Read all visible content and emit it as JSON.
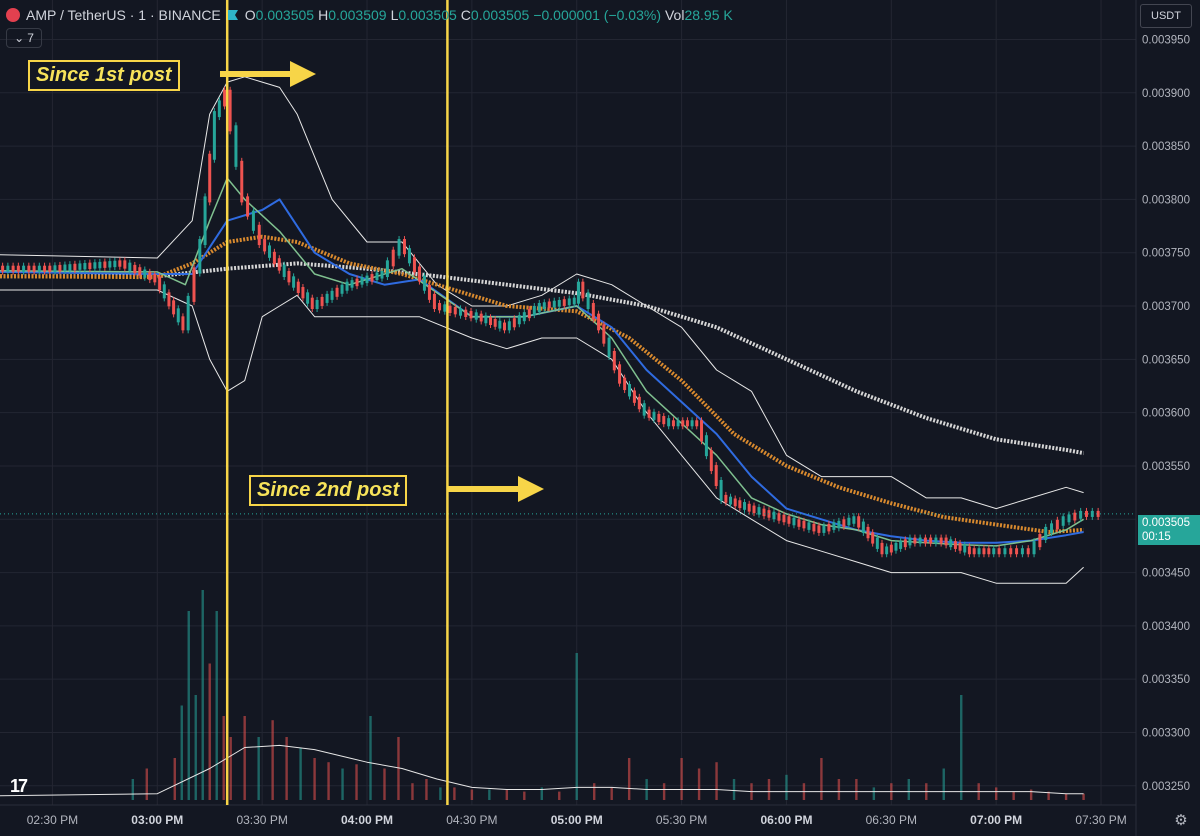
{
  "header": {
    "title": "AMP / TetherUS · 1 · BINANCE",
    "open_label": "O",
    "open": "0.003505",
    "high_label": "H",
    "high": "0.003509",
    "low_label": "L",
    "low": "0.003505",
    "close_label": "C",
    "close": "0.003505",
    "change": "−0.000001 (−0.03%)",
    "vol_label": "Vol",
    "vol": "28.95 K",
    "indicators_count": "7"
  },
  "currency": "USDT",
  "price_tag": {
    "price": "0.003505",
    "countdown": "00:15"
  },
  "annotations": {
    "first": "Since 1st post",
    "second": "Since 2nd post"
  },
  "colors": {
    "up": "#26a69a",
    "down": "#ef5350",
    "highlight": "#f7d548",
    "bollinger": "#e8e8e8",
    "ema_fast": "#7fc08f",
    "ema_mid": "#2f6be0",
    "ma_orange": "#d98a2e",
    "ma_white": "#d6d6d6",
    "background": "#131722"
  },
  "icons": {
    "logo": "tradingview-logo-icon",
    "settings": "gear-icon",
    "symbol": "amp-coin-icon"
  },
  "chart_data": {
    "type": "line",
    "title": "AMP / TetherUS · 1 · BINANCE",
    "x_tick_labels": [
      "02:30 PM",
      "03:00 PM",
      "03:30 PM",
      "04:00 PM",
      "04:30 PM",
      "05:00 PM",
      "05:30 PM",
      "06:00 PM",
      "06:30 PM",
      "07:00 PM",
      "07:30 PM"
    ],
    "x_tick_minutes": [
      870,
      900,
      930,
      960,
      990,
      1020,
      1050,
      1080,
      1110,
      1140,
      1170
    ],
    "x_range_minutes": [
      855,
      1180
    ],
    "y_tick_labels": [
      "0.003250",
      "0.003300",
      "0.003350",
      "0.003400",
      "0.003450",
      "0.003500",
      "0.003550",
      "0.003600",
      "0.003650",
      "0.003700",
      "0.003750",
      "0.003800",
      "0.003850",
      "0.003900",
      "0.003950"
    ],
    "ylim": [
      0.003232,
      0.003987
    ],
    "vertical_markers_minutes": [
      920,
      983
    ],
    "series": [
      {
        "name": "",
        "role": "price_close",
        "x": [
          855,
          870,
          890,
          900,
          908,
          913,
          917,
          920,
          925,
          930,
          937,
          945,
          955,
          965,
          970,
          980,
          992,
          1000,
          1010,
          1020,
          1021,
          1027,
          1033,
          1040,
          1047,
          1055,
          1062,
          1070,
          1080,
          1090,
          1100,
          1108,
          1116,
          1125,
          1133,
          1140,
          1145,
          1150,
          1155,
          1160,
          1165,
          1170
        ],
        "y": [
          0.003735,
          0.003735,
          0.00374,
          0.003725,
          0.00368,
          0.00376,
          0.00388,
          0.0039,
          0.0038,
          0.00376,
          0.00373,
          0.0037,
          0.00372,
          0.00373,
          0.00376,
          0.0037,
          0.00369,
          0.00368,
          0.0037,
          0.003705,
          0.00372,
          0.00368,
          0.00363,
          0.0036,
          0.00359,
          0.00359,
          0.00352,
          0.00351,
          0.0035,
          0.00349,
          0.0035,
          0.00347,
          0.00348,
          0.00348,
          0.00347,
          0.00347,
          0.00347,
          0.00347,
          0.00349,
          0.0035,
          0.003505,
          0.003505
        ]
      },
      {
        "name": "",
        "role": "ema_fast",
        "x": [
          855,
          900,
          908,
          915,
          920,
          925,
          935,
          945,
          955,
          970,
          990,
          1005,
          1020,
          1030,
          1040,
          1050,
          1060,
          1070,
          1080,
          1090,
          1100,
          1110,
          1120,
          1130,
          1140,
          1150,
          1160,
          1165
        ],
        "y": [
          0.003733,
          0.003732,
          0.00372,
          0.00378,
          0.00382,
          0.0038,
          0.00377,
          0.00373,
          0.00372,
          0.003735,
          0.00369,
          0.00369,
          0.0037,
          0.00367,
          0.00362,
          0.00359,
          0.00356,
          0.00352,
          0.003505,
          0.003495,
          0.00349,
          0.00348,
          0.003478,
          0.003476,
          0.003475,
          0.00348,
          0.00349,
          0.0035
        ]
      },
      {
        "name": "",
        "role": "ema_mid",
        "x": [
          855,
          900,
          910,
          920,
          930,
          935,
          945,
          955,
          965,
          975,
          990,
          1005,
          1020,
          1030,
          1040,
          1050,
          1060,
          1070,
          1080,
          1090,
          1100,
          1110,
          1120,
          1130,
          1140,
          1150,
          1160,
          1165
        ],
        "y": [
          0.003732,
          0.00373,
          0.00373,
          0.00378,
          0.00379,
          0.0038,
          0.00375,
          0.00373,
          0.00372,
          0.003725,
          0.00369,
          0.00369,
          0.0037,
          0.00368,
          0.00364,
          0.00361,
          0.00358,
          0.00354,
          0.00351,
          0.0035,
          0.00349,
          0.003484,
          0.00348,
          0.003478,
          0.003478,
          0.00348,
          0.003485,
          0.003488
        ]
      },
      {
        "name": "",
        "role": "ma_orange",
        "x": [
          855,
          900,
          910,
          920,
          930,
          940,
          955,
          970,
          985,
          1000,
          1020,
          1035,
          1050,
          1065,
          1080,
          1095,
          1110,
          1125,
          1140,
          1155,
          1165
        ],
        "y": [
          0.003728,
          0.003727,
          0.00374,
          0.00376,
          0.003765,
          0.00376,
          0.00374,
          0.00373,
          0.003715,
          0.0037,
          0.003695,
          0.00367,
          0.00363,
          0.00358,
          0.00355,
          0.00353,
          0.003515,
          0.003502,
          0.003495,
          0.003488,
          0.00349
        ]
      },
      {
        "name": "",
        "role": "ma_white",
        "x": [
          855,
          900,
          920,
          940,
          960,
          980,
          1000,
          1020,
          1040,
          1060,
          1080,
          1100,
          1120,
          1140,
          1160,
          1165
        ],
        "y": [
          0.003728,
          0.003728,
          0.003735,
          0.00374,
          0.003735,
          0.003728,
          0.00372,
          0.003712,
          0.0037,
          0.00368,
          0.00365,
          0.00362,
          0.003595,
          0.003575,
          0.003565,
          0.003562
        ]
      },
      {
        "name": "",
        "role": "bollinger_upper",
        "x": [
          855,
          900,
          910,
          915,
          920,
          925,
          930,
          935,
          940,
          950,
          960,
          970,
          980,
          990,
          1000,
          1010,
          1020,
          1030,
          1040,
          1050,
          1060,
          1070,
          1080,
          1090,
          1100,
          1110,
          1120,
          1130,
          1140,
          1150,
          1160,
          1165
        ],
        "y": [
          0.003748,
          0.003745,
          0.00378,
          0.00388,
          0.00391,
          0.003915,
          0.00391,
          0.003905,
          0.00388,
          0.0038,
          0.00376,
          0.00376,
          0.00372,
          0.0037,
          0.0037,
          0.00371,
          0.00373,
          0.00372,
          0.0037,
          0.00368,
          0.00364,
          0.00362,
          0.00356,
          0.00354,
          0.00354,
          0.00354,
          0.00352,
          0.00352,
          0.00351,
          0.00352,
          0.00353,
          0.003525
        ]
      },
      {
        "name": "",
        "role": "bollinger_lower",
        "x": [
          855,
          900,
          910,
          915,
          920,
          925,
          930,
          935,
          940,
          945,
          960,
          975,
          990,
          1000,
          1010,
          1020,
          1030,
          1040,
          1050,
          1060,
          1070,
          1080,
          1090,
          1100,
          1110,
          1120,
          1130,
          1140,
          1150,
          1160,
          1165
        ],
        "y": [
          0.003715,
          0.003715,
          0.0037,
          0.00365,
          0.00362,
          0.00363,
          0.00369,
          0.0037,
          0.00371,
          0.00369,
          0.00369,
          0.00369,
          0.00367,
          0.00366,
          0.00367,
          0.00367,
          0.00365,
          0.0036,
          0.00356,
          0.00352,
          0.0035,
          0.00348,
          0.00347,
          0.00346,
          0.00345,
          0.00345,
          0.00345,
          0.00344,
          0.00344,
          0.00344,
          0.003455
        ]
      },
      {
        "name": "",
        "role": "volume_ma",
        "x": [
          855,
          900,
          915,
          925,
          935,
          945,
          955,
          960,
          970,
          980,
          990,
          1000,
          1010,
          1020,
          1030,
          1040,
          1050,
          1060,
          1070,
          1080,
          1090,
          1100,
          1110,
          1120,
          1130,
          1140,
          1150,
          1160,
          1165
        ],
        "y": [
          0.2,
          0.3,
          1.5,
          2.5,
          2.6,
          2.4,
          2.0,
          1.8,
          1.5,
          1.0,
          0.6,
          0.5,
          0.5,
          0.6,
          0.6,
          0.5,
          0.5,
          0.5,
          0.4,
          0.4,
          0.4,
          0.4,
          0.4,
          0.4,
          0.4,
          0.4,
          0.4,
          0.3,
          0.3
        ]
      }
    ],
    "volume": {
      "x": [
        893,
        897,
        905,
        907,
        909,
        911,
        913,
        915,
        917,
        919,
        921,
        925,
        929,
        933,
        937,
        941,
        945,
        949,
        953,
        957,
        961,
        965,
        969,
        973,
        977,
        981,
        985,
        990,
        995,
        1000,
        1005,
        1010,
        1015,
        1020,
        1025,
        1030,
        1035,
        1040,
        1045,
        1050,
        1055,
        1060,
        1065,
        1070,
        1075,
        1080,
        1085,
        1090,
        1095,
        1100,
        1105,
        1110,
        1115,
        1120,
        1125,
        1130,
        1135,
        1140,
        1145,
        1150,
        1155,
        1160,
        1165
      ],
      "v": [
        1.0,
        1.5,
        2.0,
        4.5,
        9.0,
        5.0,
        10.0,
        6.5,
        9.0,
        4.0,
        3.0,
        4.0,
        3.0,
        3.8,
        3.0,
        2.5,
        2.0,
        1.8,
        1.5,
        1.7,
        4.0,
        1.5,
        3.0,
        0.8,
        1.0,
        0.6,
        0.6,
        0.5,
        0.5,
        0.5,
        0.4,
        0.6,
        0.4,
        7.0,
        0.8,
        0.6,
        2.0,
        1.0,
        0.8,
        2.0,
        1.5,
        1.8,
        1.0,
        0.8,
        1.0,
        1.2,
        0.8,
        2.0,
        1.0,
        1.0,
        0.6,
        0.8,
        1.0,
        0.8,
        1.5,
        5.0,
        0.8,
        0.6,
        0.4,
        0.5,
        0.4,
        0.3,
        0.3
      ],
      "up": [
        true,
        false,
        false,
        true,
        true,
        true,
        true,
        false,
        true,
        false,
        false,
        false,
        true,
        false,
        false,
        true,
        false,
        false,
        true,
        false,
        true,
        false,
        false,
        false,
        false,
        true,
        false,
        false,
        true,
        false,
        false,
        true,
        false,
        true,
        false,
        false,
        false,
        true,
        false,
        false,
        false,
        false,
        true,
        false,
        false,
        true,
        false,
        false,
        false,
        false,
        true,
        false,
        true,
        false,
        true,
        true,
        false,
        false,
        false,
        false,
        false,
        false,
        false
      ]
    }
  }
}
